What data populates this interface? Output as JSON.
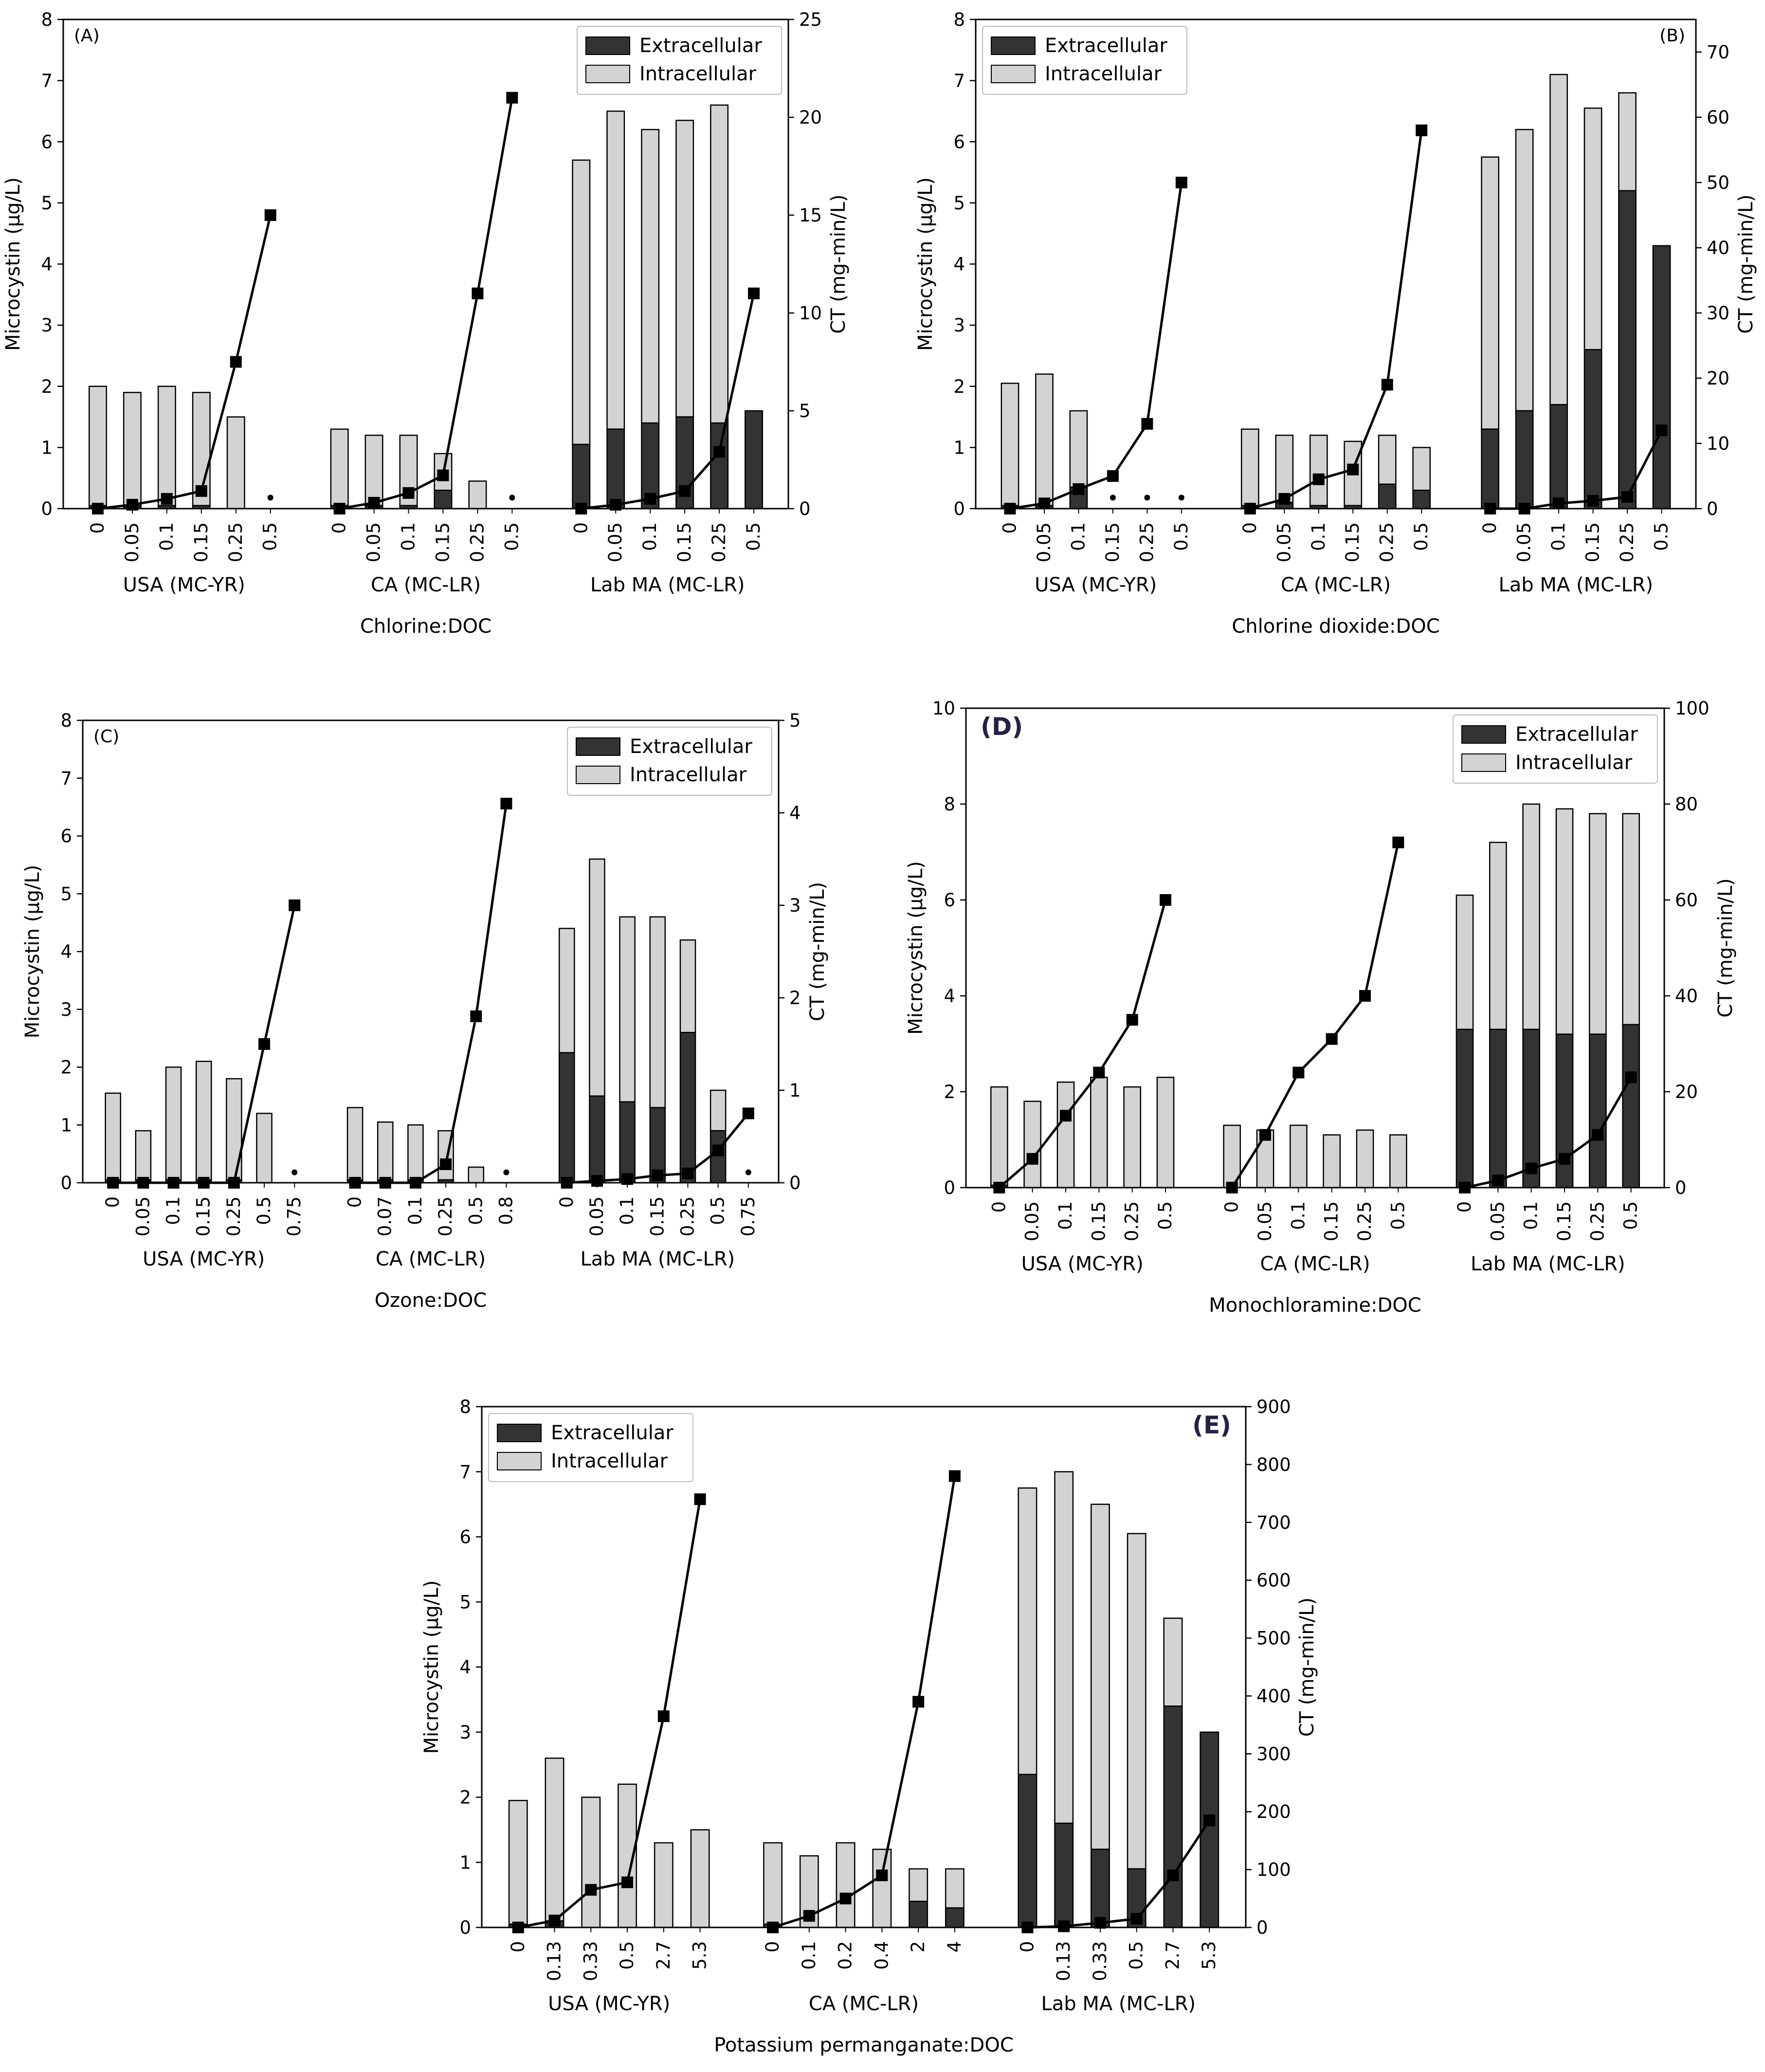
{
  "colors": {
    "extracellular": "#333333",
    "intracellular": "#d3d3d3",
    "edge": "#000000",
    "line": "#000000"
  },
  "chart_data": [
    {
      "type": "bar",
      "panel_label": "(A)",
      "xlabel": "Chlorine:DOC",
      "ylabel": "Microcystin (µg/L)",
      "y2label": "CT (mg-min/L)",
      "ylim": [
        0,
        8
      ],
      "yticks": [
        "0",
        "1",
        "2",
        "3",
        "4",
        "5",
        "6",
        "7",
        "8"
      ],
      "y2lim": [
        0,
        25
      ],
      "y2ticks": [
        "0",
        "5",
        "10",
        "15",
        "20",
        "25"
      ],
      "legend": {
        "position": "top-right",
        "entries": [
          "Extracellular",
          "Intracellular"
        ]
      },
      "groups": [
        {
          "name": "USA (MC-YR)",
          "categories": [
            "0",
            "0.05",
            "0.1",
            "0.15",
            "0.25",
            "0.5"
          ],
          "extracellular": [
            0.05,
            0.05,
            0.05,
            0.05,
            0,
            0
          ],
          "total": [
            2.0,
            1.9,
            2.0,
            1.9,
            1.5,
            0
          ],
          "ct": [
            0,
            0.2,
            0.5,
            0.9,
            7.5,
            15
          ],
          "nd": [
            false,
            false,
            false,
            false,
            false,
            true
          ]
        },
        {
          "name": "CA (MC-LR)",
          "categories": [
            "0",
            "0.05",
            "0.1",
            "0.15",
            "0.25",
            "0.5"
          ],
          "extracellular": [
            0.05,
            0.05,
            0.05,
            0.3,
            0,
            0
          ],
          "total": [
            1.3,
            1.2,
            1.2,
            0.9,
            0.45,
            0
          ],
          "ct": [
            0,
            0.3,
            0.8,
            1.7,
            11,
            21
          ],
          "nd": [
            false,
            false,
            false,
            false,
            false,
            true
          ]
        },
        {
          "name": "Lab MA (MC-LR)",
          "categories": [
            "0",
            "0.05",
            "0.1",
            "0.15",
            "0.25",
            "0.5"
          ],
          "extracellular": [
            1.05,
            1.3,
            1.4,
            1.5,
            1.4,
            1.6
          ],
          "total": [
            5.7,
            6.5,
            6.2,
            6.35,
            6.6,
            1.6
          ],
          "ct": [
            0,
            0.2,
            0.5,
            0.9,
            2.9,
            11
          ],
          "nd": [
            false,
            false,
            false,
            false,
            false,
            false
          ]
        }
      ]
    },
    {
      "type": "bar",
      "panel_label": "(B)",
      "xlabel": "Chlorine dioxide:DOC",
      "ylabel": "Microcystin (µg/L)",
      "y2label": "CT (mg-min/L)",
      "ylim": [
        0,
        8
      ],
      "yticks": [
        "0",
        "1",
        "2",
        "3",
        "4",
        "5",
        "6",
        "7",
        "8"
      ],
      "y2lim": [
        0,
        75
      ],
      "y2ticks": [
        "0",
        "10",
        "20",
        "30",
        "40",
        "50",
        "60",
        "70"
      ],
      "legend": {
        "position": "top-left",
        "entries": [
          "Extracellular",
          "Intracellular"
        ]
      },
      "groups": [
        {
          "name": "USA (MC-YR)",
          "categories": [
            "0",
            "0.05",
            "0.1",
            "0.15",
            "0.25",
            "0.5"
          ],
          "extracellular": [
            0.05,
            0.05,
            0.35,
            0,
            0,
            0
          ],
          "total": [
            2.05,
            2.2,
            1.6,
            0,
            0,
            0
          ],
          "ct": [
            0,
            0.8,
            3,
            5,
            13,
            50
          ],
          "nd": [
            false,
            false,
            false,
            true,
            true,
            true
          ]
        },
        {
          "name": "CA (MC-LR)",
          "categories": [
            "0",
            "0.05",
            "0.1",
            "0.15",
            "0.25",
            "0.5"
          ],
          "extracellular": [
            0.05,
            0.1,
            0.05,
            0.05,
            0.4,
            0.3
          ],
          "total": [
            1.3,
            1.2,
            1.2,
            1.1,
            1.2,
            1.0
          ],
          "ct": [
            0,
            1.5,
            4.5,
            6,
            19,
            58
          ],
          "nd": [
            false,
            false,
            false,
            false,
            false,
            false
          ]
        },
        {
          "name": "Lab MA (MC-LR)",
          "categories": [
            "0",
            "0.05",
            "0.1",
            "0.15",
            "0.25",
            "0.5"
          ],
          "extracellular": [
            1.3,
            1.6,
            1.7,
            2.6,
            5.2,
            4.3
          ],
          "total": [
            5.75,
            6.2,
            7.1,
            6.55,
            6.8,
            4.3
          ],
          "ct": [
            0,
            0,
            0.8,
            1.2,
            1.8,
            12
          ],
          "nd": [
            false,
            false,
            false,
            false,
            false,
            false
          ]
        }
      ]
    },
    {
      "type": "bar",
      "panel_label": "(C)",
      "xlabel": "Ozone:DOC",
      "ylabel": "Microcystin (µg/L)",
      "y2label": "CT (mg-min/L)",
      "ylim": [
        0,
        8
      ],
      "yticks": [
        "0",
        "1",
        "2",
        "3",
        "4",
        "5",
        "6",
        "7",
        "8"
      ],
      "y2lim": [
        0,
        5
      ],
      "y2ticks": [
        "0",
        "1",
        "2",
        "3",
        "4",
        "5"
      ],
      "legend": {
        "position": "top-right",
        "entries": [
          "Extracellular",
          "Intracellular"
        ]
      },
      "groups": [
        {
          "name": "USA (MC-YR)",
          "categories": [
            "0",
            "0.05",
            "0.1",
            "0.15",
            "0.25",
            "0.5",
            "0.75"
          ],
          "extracellular": [
            0.05,
            0.05,
            0.05,
            0.05,
            0.05,
            0,
            0
          ],
          "total": [
            1.55,
            0.9,
            2.0,
            2.1,
            1.8,
            1.2,
            0
          ],
          "ct": [
            0,
            0,
            0,
            0,
            0,
            1.5,
            3
          ],
          "nd": [
            false,
            false,
            false,
            false,
            false,
            false,
            true
          ]
        },
        {
          "name": "CA (MC-LR)",
          "categories": [
            "0",
            "0.07",
            "0.1",
            "0.25",
            "0.5",
            "0.8"
          ],
          "extracellular": [
            0.05,
            0.05,
            0.05,
            0.05,
            0,
            0
          ],
          "total": [
            1.3,
            1.05,
            1.0,
            0.9,
            0.27,
            0
          ],
          "ct": [
            0,
            0,
            0,
            0.2,
            1.8,
            4.1
          ],
          "nd": [
            false,
            false,
            false,
            false,
            false,
            true
          ]
        },
        {
          "name": "Lab MA (MC-LR)",
          "categories": [
            "0",
            "0.05",
            "0.1",
            "0.15",
            "0.25",
            "0.5",
            "0.75"
          ],
          "extracellular": [
            2.25,
            1.5,
            1.4,
            1.3,
            2.6,
            0.9,
            0
          ],
          "total": [
            4.4,
            5.6,
            4.6,
            4.6,
            4.2,
            1.6,
            0
          ],
          "ct": [
            0,
            0.02,
            0.04,
            0.08,
            0.1,
            0.35,
            0.75
          ],
          "nd": [
            false,
            false,
            false,
            false,
            false,
            false,
            true
          ]
        }
      ]
    },
    {
      "type": "bar",
      "panel_label": "(D)",
      "xlabel": "Monochloramine:DOC",
      "ylabel": "Microcystin (µg/L)",
      "y2label": "CT (mg-min/L)",
      "ylim": [
        0,
        10
      ],
      "yticks": [
        "0",
        "2",
        "4",
        "6",
        "8",
        "10"
      ],
      "y2lim": [
        0,
        100
      ],
      "y2ticks": [
        "0",
        "20",
        "40",
        "60",
        "80",
        "100"
      ],
      "legend": {
        "position": "top-right",
        "entries": [
          "Extracellular",
          "Intracellular"
        ]
      },
      "groups": [
        {
          "name": "USA (MC-YR)",
          "categories": [
            "0",
            "0.05",
            "0.1",
            "0.15",
            "0.25",
            "0.5"
          ],
          "extracellular": [
            0.05,
            0,
            0,
            0,
            0,
            0
          ],
          "total": [
            2.1,
            1.8,
            2.2,
            2.3,
            2.1,
            2.3
          ],
          "ct": [
            0,
            6,
            15,
            24,
            35,
            60
          ],
          "nd": [
            false,
            false,
            false,
            false,
            false,
            false
          ]
        },
        {
          "name": "CA (MC-LR)",
          "categories": [
            "0",
            "0.05",
            "0.1",
            "0.15",
            "0.25",
            "0.5"
          ],
          "extracellular": [
            0,
            0,
            0,
            0,
            0,
            0
          ],
          "total": [
            1.3,
            1.2,
            1.3,
            1.1,
            1.2,
            1.1
          ],
          "ct": [
            0,
            11,
            24,
            31,
            40,
            72
          ],
          "nd": [
            false,
            false,
            false,
            false,
            false,
            false
          ]
        },
        {
          "name": "Lab MA (MC-LR)",
          "categories": [
            "0",
            "0.05",
            "0.1",
            "0.15",
            "0.25",
            "0.5"
          ],
          "extracellular": [
            3.3,
            3.3,
            3.3,
            3.2,
            3.2,
            3.4
          ],
          "total": [
            6.1,
            7.2,
            8.0,
            7.9,
            7.8,
            7.8
          ],
          "ct": [
            0,
            1.5,
            4,
            6,
            11,
            23
          ],
          "nd": [
            false,
            false,
            false,
            false,
            false,
            false
          ]
        }
      ]
    },
    {
      "type": "bar",
      "panel_label": "(E)",
      "xlabel": "Potassium permanganate:DOC",
      "ylabel": "Microcystin (µg/L)",
      "y2label": "CT (mg-min/L)",
      "ylim": [
        0,
        8
      ],
      "yticks": [
        "0",
        "1",
        "2",
        "3",
        "4",
        "5",
        "6",
        "7",
        "8"
      ],
      "y2lim": [
        0,
        900
      ],
      "y2ticks": [
        "0",
        "100",
        "200",
        "300",
        "400",
        "500",
        "600",
        "700",
        "800",
        "900"
      ],
      "legend": {
        "position": "top-left",
        "entries": [
          "Extracellular",
          "Intracellular"
        ]
      },
      "groups": [
        {
          "name": "USA (MC-YR)",
          "categories": [
            "0",
            "0.13",
            "0.33",
            "0.5",
            "2.7",
            "5.3"
          ],
          "extracellular": [
            0.05,
            0.1,
            0,
            0,
            0,
            0
          ],
          "total": [
            1.95,
            2.6,
            2.0,
            2.2,
            1.3,
            1.5
          ],
          "ct": [
            0,
            12,
            65,
            78,
            365,
            740
          ],
          "nd": [
            false,
            false,
            false,
            false,
            false,
            false
          ]
        },
        {
          "name": "CA (MC-LR)",
          "categories": [
            "0",
            "0.1",
            "0.2",
            "0.4",
            "2",
            "4"
          ],
          "extracellular": [
            0.05,
            0,
            0,
            0,
            0.4,
            0.3
          ],
          "total": [
            1.3,
            1.1,
            1.3,
            1.2,
            0.9,
            0.9
          ],
          "ct": [
            0,
            20,
            50,
            90,
            390,
            780
          ],
          "nd": [
            false,
            false,
            false,
            false,
            false,
            false
          ]
        },
        {
          "name": "Lab MA (MC-LR)",
          "categories": [
            "0",
            "0.13",
            "0.33",
            "0.5",
            "2.7",
            "5.3"
          ],
          "extracellular": [
            2.35,
            1.6,
            1.2,
            0.9,
            3.4,
            3.0
          ],
          "total": [
            6.75,
            7.0,
            6.5,
            6.05,
            4.75,
            3.0
          ],
          "ct": [
            0,
            2,
            8,
            15,
            90,
            185
          ],
          "nd": [
            false,
            false,
            false,
            false,
            false,
            false
          ]
        }
      ]
    }
  ]
}
